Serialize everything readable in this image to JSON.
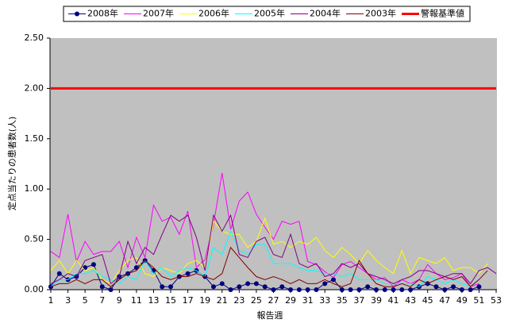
{
  "chart_data": {
    "type": "line",
    "xlabel": "報告週",
    "ylabel": "定点当たりの患者数(人)",
    "x": [
      1,
      2,
      3,
      4,
      5,
      6,
      7,
      8,
      9,
      10,
      11,
      12,
      13,
      14,
      15,
      16,
      17,
      18,
      19,
      20,
      21,
      22,
      23,
      24,
      25,
      26,
      27,
      28,
      29,
      30,
      31,
      32,
      33,
      34,
      35,
      36,
      37,
      38,
      39,
      40,
      41,
      42,
      43,
      44,
      45,
      46,
      47,
      48,
      49,
      50,
      51,
      52,
      53
    ],
    "xlim": [
      1,
      53
    ],
    "xticks": [
      1,
      3,
      5,
      7,
      9,
      11,
      13,
      15,
      17,
      19,
      21,
      23,
      25,
      27,
      29,
      31,
      33,
      35,
      37,
      39,
      41,
      43,
      45,
      47,
      49,
      51,
      53
    ],
    "ylim": [
      0,
      2.5
    ],
    "yticks": [
      {
        "value": 0,
        "label": "0.00"
      },
      {
        "value": 0.5,
        "label": "0.50"
      },
      {
        "value": 1,
        "label": "1.00"
      },
      {
        "value": 1.5,
        "label": "1.50"
      },
      {
        "value": 2,
        "label": "2.00"
      },
      {
        "value": 2.5,
        "label": "2.50"
      }
    ],
    "series": [
      {
        "name": "2008年",
        "color": "#000080",
        "marker": true,
        "values": [
          0.03,
          0.16,
          0.1,
          0.13,
          0.22,
          0.25,
          0.03,
          0.0,
          0.13,
          0.16,
          0.22,
          0.29,
          0.19,
          0.03,
          0.03,
          0.13,
          0.16,
          0.19,
          0.13,
          0.03,
          0.06,
          0.0,
          0.03,
          0.06,
          0.06,
          0.03,
          0.0,
          0.03,
          0.0,
          0.0,
          0.0,
          0.0,
          0.06,
          0.1,
          0.0,
          0.0,
          0.0,
          0.03,
          0.0,
          0.0,
          0.0,
          0.0,
          0.0,
          0.03,
          0.06,
          0.03,
          0.0,
          0.03,
          0.0,
          0.0,
          0.03,
          null,
          null
        ]
      },
      {
        "name": "2007年",
        "color": "#ff00ff",
        "values": [
          0.38,
          0.32,
          0.75,
          0.28,
          0.48,
          0.35,
          0.38,
          0.38,
          0.48,
          0.22,
          0.52,
          0.32,
          0.84,
          0.68,
          0.72,
          0.55,
          0.78,
          0.22,
          0.3,
          0.65,
          1.16,
          0.6,
          0.88,
          0.97,
          0.75,
          0.62,
          0.5,
          0.68,
          0.65,
          0.68,
          0.28,
          0.25,
          0.18,
          0.12,
          0.25,
          0.28,
          0.22,
          0.16,
          0.1,
          0.12,
          0.03,
          0.1,
          0.06,
          0.1,
          0.25,
          0.16,
          0.1,
          0.12,
          0.16,
          0.03,
          0.06,
          null,
          null
        ]
      },
      {
        "name": "2006年",
        "color": "#ffff00",
        "values": [
          0.19,
          0.29,
          0.16,
          0.29,
          0.19,
          0.22,
          0.1,
          0.06,
          0.19,
          0.29,
          0.32,
          0.16,
          0.13,
          0.22,
          0.19,
          0.16,
          0.26,
          0.29,
          0.22,
          0.68,
          0.58,
          0.55,
          0.55,
          0.42,
          0.48,
          0.71,
          0.45,
          0.48,
          0.42,
          0.48,
          0.45,
          0.52,
          0.39,
          0.32,
          0.42,
          0.35,
          0.26,
          0.39,
          0.29,
          0.22,
          0.16,
          0.39,
          0.16,
          0.32,
          0.29,
          0.26,
          0.32,
          0.19,
          0.22,
          0.22,
          0.16,
          0.26,
          null
        ]
      },
      {
        "name": "2005年",
        "color": "#00ffff",
        "values": [
          0.03,
          0.1,
          0.1,
          0.16,
          0.16,
          0.19,
          0.13,
          0.1,
          0.06,
          0.13,
          0.1,
          0.29,
          0.16,
          0.22,
          0.13,
          0.19,
          0.22,
          0.19,
          0.13,
          0.42,
          0.35,
          0.58,
          0.39,
          0.35,
          0.45,
          0.45,
          0.26,
          0.26,
          0.26,
          0.22,
          0.19,
          0.19,
          0.16,
          0.16,
          0.13,
          0.16,
          0.1,
          0.1,
          0.1,
          0.06,
          0.06,
          0.06,
          0.06,
          0.03,
          0.13,
          0.1,
          0.06,
          0.1,
          0.06,
          0.03,
          0.1,
          null,
          null
        ]
      },
      {
        "name": "2004年",
        "color": "#800080",
        "values": [
          0.06,
          0.1,
          0.16,
          0.13,
          0.29,
          0.32,
          0.35,
          0.06,
          0.13,
          0.48,
          0.26,
          0.42,
          0.35,
          0.55,
          0.74,
          0.68,
          0.74,
          0.52,
          0.19,
          0.74,
          0.58,
          0.74,
          0.35,
          0.32,
          0.48,
          0.52,
          0.35,
          0.32,
          0.55,
          0.26,
          0.22,
          0.26,
          0.13,
          0.16,
          0.26,
          0.22,
          0.26,
          0.16,
          0.13,
          0.1,
          0.06,
          0.1,
          0.13,
          0.19,
          0.19,
          0.16,
          0.13,
          0.16,
          0.16,
          0.06,
          0.19,
          0.22,
          0.16
        ]
      },
      {
        "name": "2003年",
        "color": "#800000",
        "values": [
          0.03,
          0.06,
          0.06,
          0.1,
          0.06,
          0.1,
          0.1,
          0.03,
          0.1,
          0.16,
          0.19,
          0.29,
          0.22,
          0.13,
          0.1,
          0.13,
          0.13,
          0.16,
          0.13,
          0.1,
          0.16,
          0.42,
          0.32,
          0.22,
          0.13,
          0.1,
          0.13,
          0.1,
          0.06,
          0.1,
          0.06,
          0.06,
          0.1,
          0.06,
          0.03,
          0.06,
          0.29,
          0.16,
          0.06,
          0.03,
          0.03,
          0.06,
          0.03,
          0.1,
          0.06,
          0.1,
          0.13,
          0.1,
          0.13,
          0.03,
          0.1,
          0.19,
          null
        ]
      },
      {
        "name": "警報基準値",
        "color": "#ff0000",
        "width": 3,
        "values": [
          2,
          2,
          2,
          2,
          2,
          2,
          2,
          2,
          2,
          2,
          2,
          2,
          2,
          2,
          2,
          2,
          2,
          2,
          2,
          2,
          2,
          2,
          2,
          2,
          2,
          2,
          2,
          2,
          2,
          2,
          2,
          2,
          2,
          2,
          2,
          2,
          2,
          2,
          2,
          2,
          2,
          2,
          2,
          2,
          2,
          2,
          2,
          2,
          2,
          2,
          2,
          2,
          2
        ]
      }
    ]
  }
}
